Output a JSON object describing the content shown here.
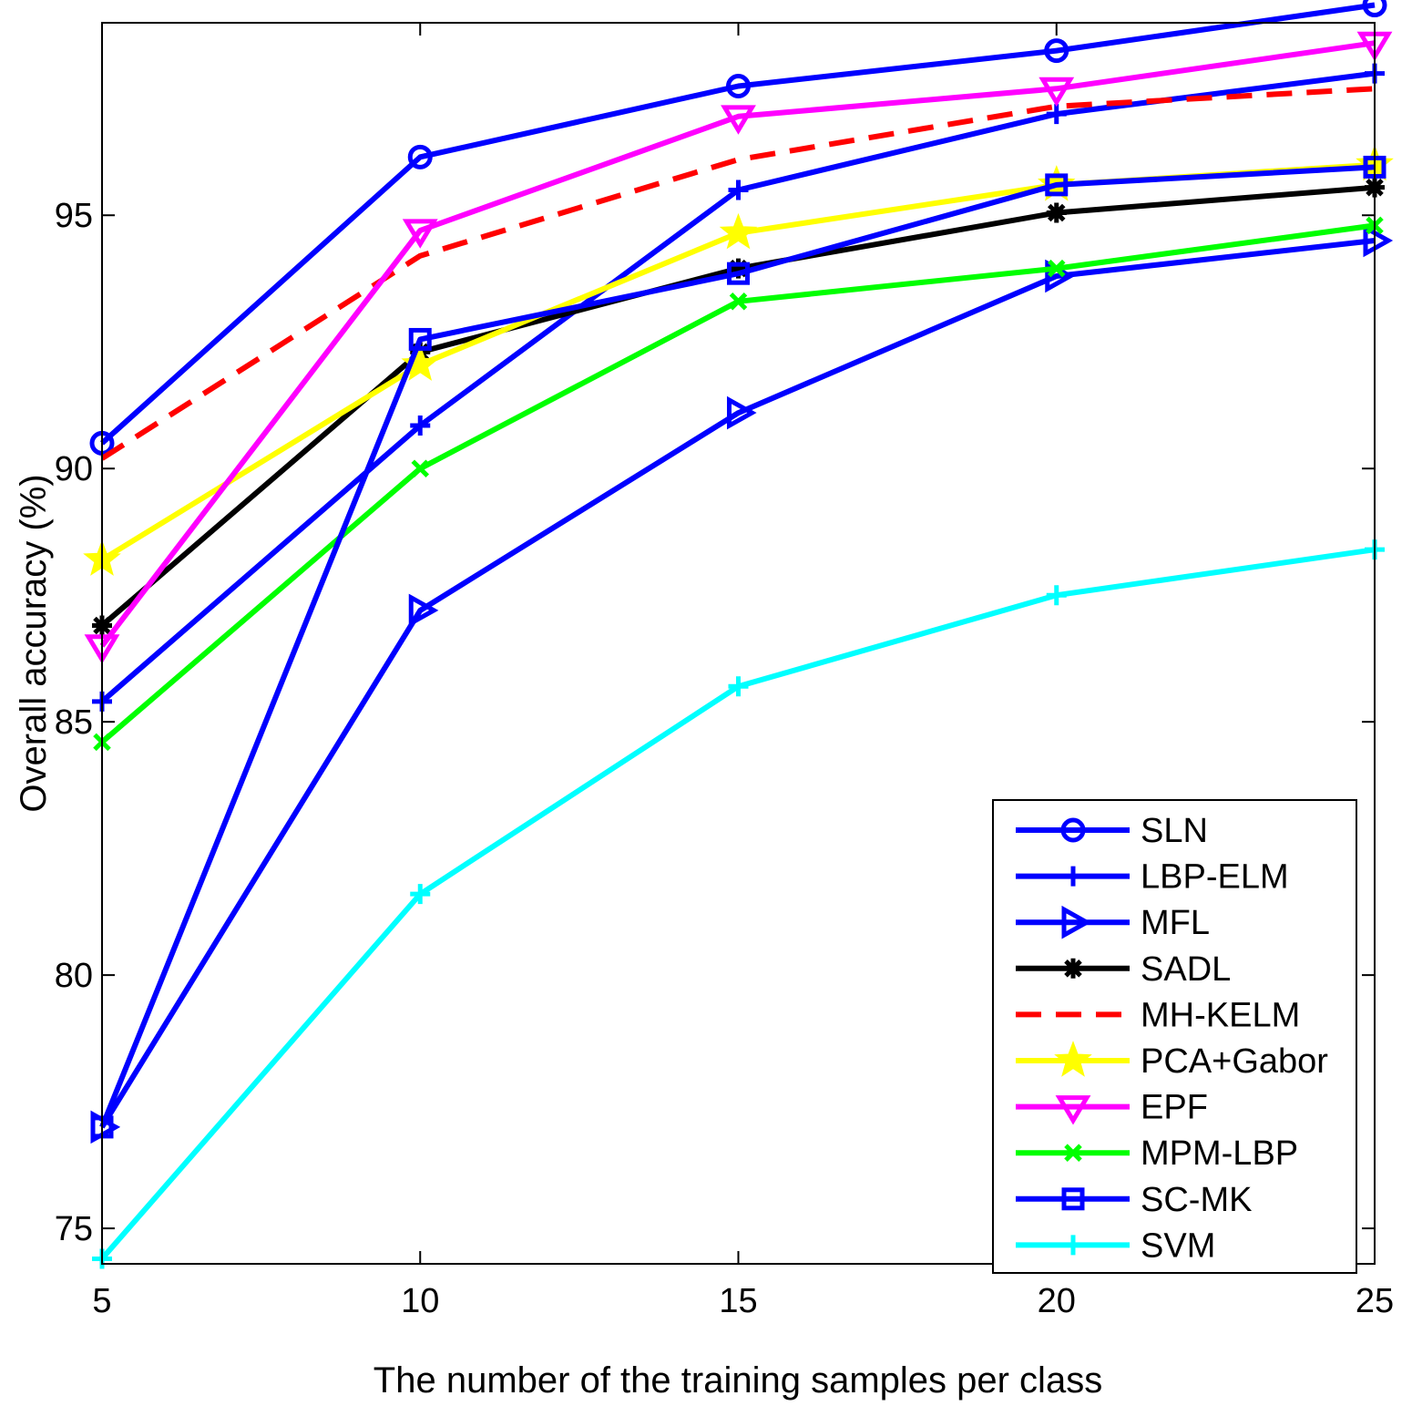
{
  "chart_data": {
    "type": "line",
    "title": "",
    "xlabel": "The number of the training samples per class",
    "ylabel": "Overall accuracy (%)",
    "x": [
      5,
      10,
      15,
      20,
      25
    ],
    "xlim": [
      5,
      25
    ],
    "ylim": [
      74.3,
      98.8
    ],
    "xticks": [
      5,
      10,
      15,
      20,
      25
    ],
    "yticks": [
      75,
      80,
      85,
      90,
      95
    ],
    "grid": false,
    "legend_position": "bottom-right",
    "series": [
      {
        "name": "SLN",
        "color": "#0000ff",
        "marker": "circle",
        "dash": "solid",
        "values": [
          90.5,
          96.15,
          97.55,
          98.25,
          99.15
        ]
      },
      {
        "name": "LBP-ELM",
        "color": "#0000ff",
        "marker": "plus",
        "dash": "solid",
        "values": [
          85.4,
          90.85,
          95.5,
          97.0,
          97.8
        ]
      },
      {
        "name": "MFL",
        "color": "#0000ff",
        "marker": "triangle-right",
        "dash": "solid",
        "values": [
          77.0,
          87.2,
          91.1,
          93.8,
          94.5
        ]
      },
      {
        "name": "SADL",
        "color": "#000000",
        "marker": "asterisk",
        "dash": "solid",
        "values": [
          86.9,
          92.3,
          93.95,
          95.05,
          95.55
        ]
      },
      {
        "name": "MH-KELM",
        "color": "#ff0000",
        "marker": "none",
        "dash": "dashed",
        "values": [
          90.2,
          94.2,
          96.1,
          97.15,
          97.5
        ]
      },
      {
        "name": "PCA+Gabor",
        "color": "#ffff00",
        "marker": "star",
        "dash": "solid",
        "values": [
          88.2,
          92.05,
          94.65,
          95.6,
          96.0
        ]
      },
      {
        "name": "EPF",
        "color": "#ff00ff",
        "marker": "triangle-down",
        "dash": "solid",
        "values": [
          86.5,
          94.7,
          96.95,
          97.5,
          98.4
        ]
      },
      {
        "name": "MPM-LBP",
        "color": "#00ff00",
        "marker": "x",
        "dash": "solid",
        "values": [
          84.6,
          90.0,
          93.3,
          93.95,
          94.8
        ]
      },
      {
        "name": "SC-MK",
        "color": "#0000ff",
        "marker": "square",
        "dash": "solid",
        "values": [
          77.0,
          92.55,
          93.85,
          95.6,
          95.95
        ]
      },
      {
        "name": "SVM",
        "color": "#00ffff",
        "marker": "plus",
        "dash": "solid",
        "values": [
          74.4,
          81.6,
          85.7,
          87.5,
          88.4
        ]
      }
    ]
  }
}
